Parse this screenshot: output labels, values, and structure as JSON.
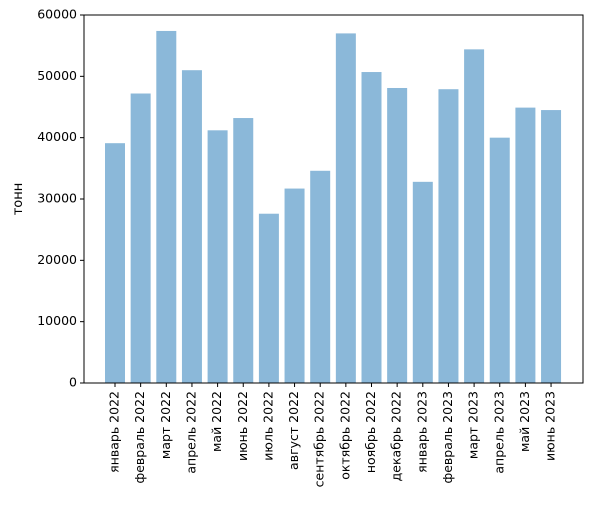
{
  "chart_data": {
    "type": "bar",
    "title": "",
    "xlabel": "",
    "ylabel": "тонн",
    "ylim": [
      0,
      60000
    ],
    "yticks": [
      0,
      10000,
      20000,
      30000,
      40000,
      50000,
      60000
    ],
    "grid": false,
    "bar_color": "#8bb8d9",
    "categories": [
      "январь 2022",
      "февраль 2022",
      "март 2022",
      "апрель 2022",
      "май 2022",
      "июнь 2022",
      "июль 2022",
      "август 2022",
      "сентябрь 2022",
      "октябрь 2022",
      "ноябрь 2022",
      "декабрь 2022",
      "январь 2023",
      "февраль 2023",
      "март 2023",
      "апрель 2023",
      "май 2023",
      "июнь 2023"
    ],
    "values": [
      39100,
      47200,
      57400,
      51000,
      41200,
      43200,
      27600,
      31700,
      34600,
      57000,
      50700,
      48100,
      32800,
      47900,
      54400,
      40000,
      44900,
      44500
    ]
  }
}
